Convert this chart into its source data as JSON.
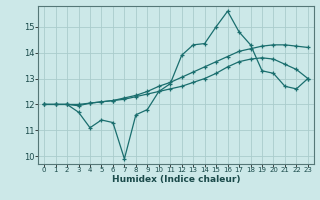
{
  "xlabel": "Humidex (Indice chaleur)",
  "background_color": "#cce8e8",
  "grid_color": "#aacccc",
  "line_color": "#1a6e6e",
  "xlim": [
    -0.5,
    23.5
  ],
  "ylim": [
    9.7,
    15.8
  ],
  "xticks": [
    0,
    1,
    2,
    3,
    4,
    5,
    6,
    7,
    8,
    9,
    10,
    11,
    12,
    13,
    14,
    15,
    16,
    17,
    18,
    19,
    20,
    21,
    22,
    23
  ],
  "yticks": [
    10,
    11,
    12,
    13,
    14,
    15
  ],
  "line1_x": [
    0,
    1,
    2,
    3,
    4,
    5,
    6,
    7,
    8,
    9,
    10,
    11,
    12,
    13,
    14,
    15,
    16,
    17,
    18,
    19,
    20,
    21,
    22,
    23
  ],
  "line1_y": [
    12.0,
    12.0,
    12.0,
    11.7,
    11.1,
    11.4,
    11.3,
    9.9,
    11.6,
    11.8,
    12.5,
    12.8,
    13.9,
    14.3,
    14.35,
    15.0,
    15.6,
    14.8,
    14.3,
    13.3,
    13.2,
    12.7,
    12.6,
    13.0
  ],
  "line2_x": [
    0,
    1,
    2,
    3,
    4,
    5,
    6,
    7,
    8,
    9,
    10,
    11,
    12,
    13,
    14,
    15,
    16,
    17,
    18,
    19,
    20,
    21,
    22,
    23
  ],
  "line2_y": [
    12.0,
    12.0,
    12.0,
    11.95,
    12.05,
    12.1,
    12.15,
    12.25,
    12.35,
    12.5,
    12.7,
    12.85,
    13.05,
    13.25,
    13.45,
    13.65,
    13.85,
    14.05,
    14.15,
    14.25,
    14.3,
    14.3,
    14.25,
    14.2
  ],
  "line3_x": [
    0,
    1,
    2,
    3,
    4,
    5,
    6,
    7,
    8,
    9,
    10,
    11,
    12,
    13,
    14,
    15,
    16,
    17,
    18,
    19,
    20,
    21,
    22,
    23
  ],
  "line3_y": [
    12.0,
    12.0,
    12.0,
    12.0,
    12.05,
    12.1,
    12.15,
    12.2,
    12.3,
    12.4,
    12.5,
    12.6,
    12.7,
    12.85,
    13.0,
    13.2,
    13.45,
    13.65,
    13.75,
    13.8,
    13.75,
    13.55,
    13.35,
    13.0
  ]
}
